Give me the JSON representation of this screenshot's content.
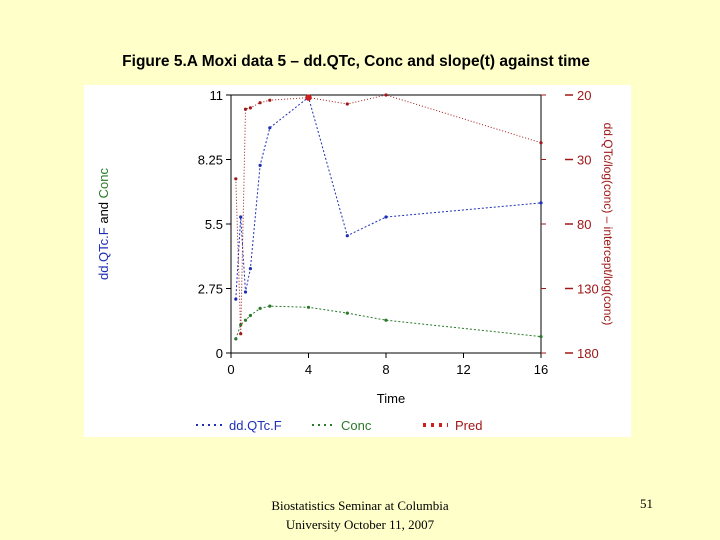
{
  "slide": {
    "title": "Figure 5.A Moxi data 5 – dd.QTc, Conc and slope(t) against time",
    "footer_line1": "Biostatistics Seminar at Columbia",
    "footer_line2": "University October 11, 2007",
    "page_number": "51"
  },
  "colors": {
    "background": "#ffffc9",
    "ddqtcf": "#1f2fb4",
    "conc": "#2a7a2a",
    "pred": "#a01818"
  },
  "chart_data": {
    "type": "line",
    "title": "",
    "xlabel": "Time",
    "ylabel_left_part1": "dd.QTc.F",
    "ylabel_left_and": " and ",
    "ylabel_left_part2": "Conc",
    "ylabel_right": "dd.QTc/log(conc) – intercept/log(conc)",
    "xlim": [
      0,
      16
    ],
    "ylim_left": [
      0,
      11
    ],
    "ylim_right": [
      -180,
      20
    ],
    "xticks": [
      0,
      4,
      8,
      12,
      16
    ],
    "xtick_labels": [
      "0",
      "4",
      "8",
      "12",
      "16"
    ],
    "yticks_left": [
      0,
      2.75,
      5.5,
      8.25,
      11
    ],
    "ytick_labels_left": [
      "0",
      "2.75",
      "5.5",
      "8.25",
      "11"
    ],
    "yticks_right": [
      -180,
      -130,
      -80,
      -30,
      20
    ],
    "ytick_labels_right": [
      "180",
      "130",
      "80",
      "30",
      "20"
    ],
    "legend_position": "bottom",
    "series": [
      {
        "name": "dd.QTc.F",
        "axis": "left",
        "color": "#1f2fb4",
        "x": [
          0.25,
          0.5,
          0.75,
          1,
          1.5,
          2,
          4,
          6,
          8,
          16
        ],
        "y": [
          2.3,
          5.8,
          2.6,
          3.6,
          8,
          9.6,
          10.9,
          5,
          5.8,
          6.4
        ]
      },
      {
        "name": "Conc",
        "axis": "left",
        "color": "#2a7a2a",
        "x": [
          0.25,
          0.5,
          0.75,
          1,
          1.5,
          2,
          4,
          6,
          8,
          16
        ],
        "y": [
          0.6,
          1.2,
          1.4,
          1.6,
          1.9,
          2,
          1.95,
          1.7,
          1.4,
          0.7
        ]
      },
      {
        "name": "Pred",
        "axis": "right",
        "color": "#a01818",
        "x": [
          0.25,
          0.5,
          0.75,
          1,
          1.5,
          2,
          4,
          6,
          8,
          16
        ],
        "y": [
          -45,
          -165,
          9,
          10,
          14,
          16,
          18,
          13,
          20,
          -17
        ]
      }
    ]
  }
}
